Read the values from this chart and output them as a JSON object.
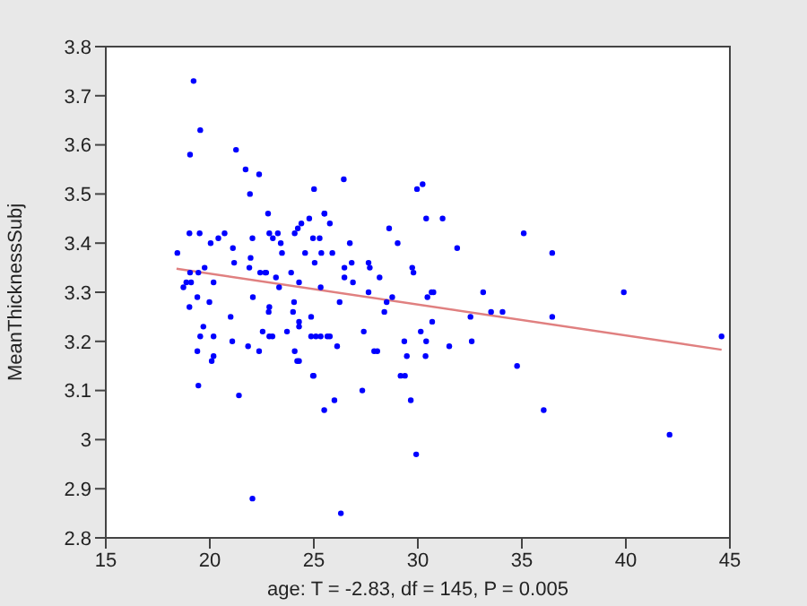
{
  "chart_data": {
    "type": "scatter",
    "xlabel": "age: T = -2.83, df = 145, P = 0.005",
    "ylabel": "MeanThicknessSubj",
    "xlim": [
      15,
      45
    ],
    "xticks": [
      15,
      20,
      25,
      30,
      35,
      40,
      45
    ],
    "ylim": [
      2.8,
      3.8
    ],
    "yticks": [
      2.8,
      2.9,
      3,
      3.1,
      3.2,
      3.3,
      3.4,
      3.5,
      3.6,
      3.7,
      3.8
    ],
    "marker": "circle",
    "series": [
      {
        "color": "#0000ff",
        "x": [
          19.22,
          19.54,
          19.05,
          21.26,
          21.72,
          22.37,
          21.93,
          25.01,
          22.8,
          18.44,
          19.02,
          19.51,
          20.04,
          20.41,
          20.71,
          21.11,
          22.05,
          22.86,
          23.03,
          23.27,
          23.41,
          23.47,
          24.08,
          24.23,
          24.4,
          24.58,
          24.78,
          24.96,
          25.28,
          19.05,
          19.45,
          19.75,
          20.18,
          19.1,
          18.73,
          18.87,
          21.17,
          21.96,
          21.9,
          22.42,
          22.66,
          22.71,
          23.18,
          23.33,
          23.91,
          24.29,
          25.04,
          25.33,
          19.02,
          19.4,
          19.98,
          22.07,
          22.86,
          22.83,
          24.05,
          24.0,
          24.87,
          19.69,
          19.54,
          19.4,
          20.18,
          20.09,
          20.18,
          21.0,
          21.08,
          21.84,
          22.37,
          22.54,
          22.86,
          23.01,
          23.71,
          24.29,
          24.29,
          24.87,
          24.08,
          24.29,
          24.99,
          25.33,
          19.45,
          21.4,
          22.05,
          24.2,
          24.96,
          25.5,
          26.44,
          29.96,
          30.23,
          25.51,
          25.51,
          25.77,
          30.4,
          31.19,
          28.62,
          26.73,
          25.89,
          25.36,
          29.03,
          31.89,
          35.09,
          36.46,
          26.47,
          26.82,
          27.63,
          27.69,
          26.47,
          26.88,
          28.16,
          29.73,
          29.79,
          27.63,
          28.77,
          28.5,
          30.66,
          30.75,
          30.46,
          33.14,
          33.52,
          34.07,
          36.46,
          26.24,
          28.39,
          30.69,
          32.53,
          27.4,
          25.77,
          25.65,
          25.1,
          26.12,
          27.9,
          28.05,
          29.35,
          30.14,
          30.4,
          30.37,
          29.47,
          31.51,
          32.59,
          34.77,
          29.38,
          25.99,
          27.33,
          29.17,
          29.66,
          29.92,
          26.3,
          36.05,
          39.9,
          42.1,
          44.6
        ],
        "values": [
          3.73,
          3.63,
          3.58,
          3.59,
          3.55,
          3.54,
          3.5,
          3.51,
          3.46,
          3.38,
          3.42,
          3.42,
          3.4,
          3.41,
          3.42,
          3.39,
          3.41,
          3.42,
          3.41,
          3.42,
          3.4,
          3.38,
          3.42,
          3.43,
          3.44,
          3.38,
          3.45,
          3.41,
          3.41,
          3.34,
          3.34,
          3.35,
          3.32,
          3.32,
          3.31,
          3.32,
          3.36,
          3.37,
          3.35,
          3.34,
          3.34,
          3.34,
          3.33,
          3.31,
          3.34,
          3.32,
          3.36,
          3.31,
          3.27,
          3.29,
          3.28,
          3.29,
          3.27,
          3.26,
          3.28,
          3.26,
          3.25,
          3.23,
          3.21,
          3.18,
          3.21,
          3.16,
          3.17,
          3.25,
          3.2,
          3.19,
          3.18,
          3.22,
          3.21,
          3.21,
          3.22,
          3.24,
          3.23,
          3.21,
          3.18,
          3.16,
          3.13,
          3.21,
          3.11,
          3.09,
          2.88,
          3.16,
          3.13,
          3.06,
          3.53,
          3.51,
          3.52,
          3.46,
          3.46,
          3.44,
          3.45,
          3.45,
          3.43,
          3.4,
          3.38,
          3.38,
          3.4,
          3.39,
          3.42,
          3.38,
          3.35,
          3.36,
          3.36,
          3.35,
          3.33,
          3.32,
          3.33,
          3.35,
          3.34,
          3.3,
          3.29,
          3.28,
          3.3,
          3.3,
          3.29,
          3.3,
          3.26,
          3.26,
          3.25,
          3.28,
          3.26,
          3.24,
          3.25,
          3.22,
          3.21,
          3.21,
          3.21,
          3.19,
          3.18,
          3.18,
          3.2,
          3.22,
          3.2,
          3.17,
          3.17,
          3.19,
          3.2,
          3.15,
          3.13,
          3.08,
          3.1,
          3.13,
          3.08,
          2.97,
          2.85,
          3.06,
          3.3,
          3.01,
          3.21
        ]
      },
      {
        "type": "line",
        "color": "#e08080",
        "marker": "none",
        "x": [
          18.4,
          44.6
        ],
        "values": [
          3.348,
          3.183
        ]
      }
    ]
  }
}
